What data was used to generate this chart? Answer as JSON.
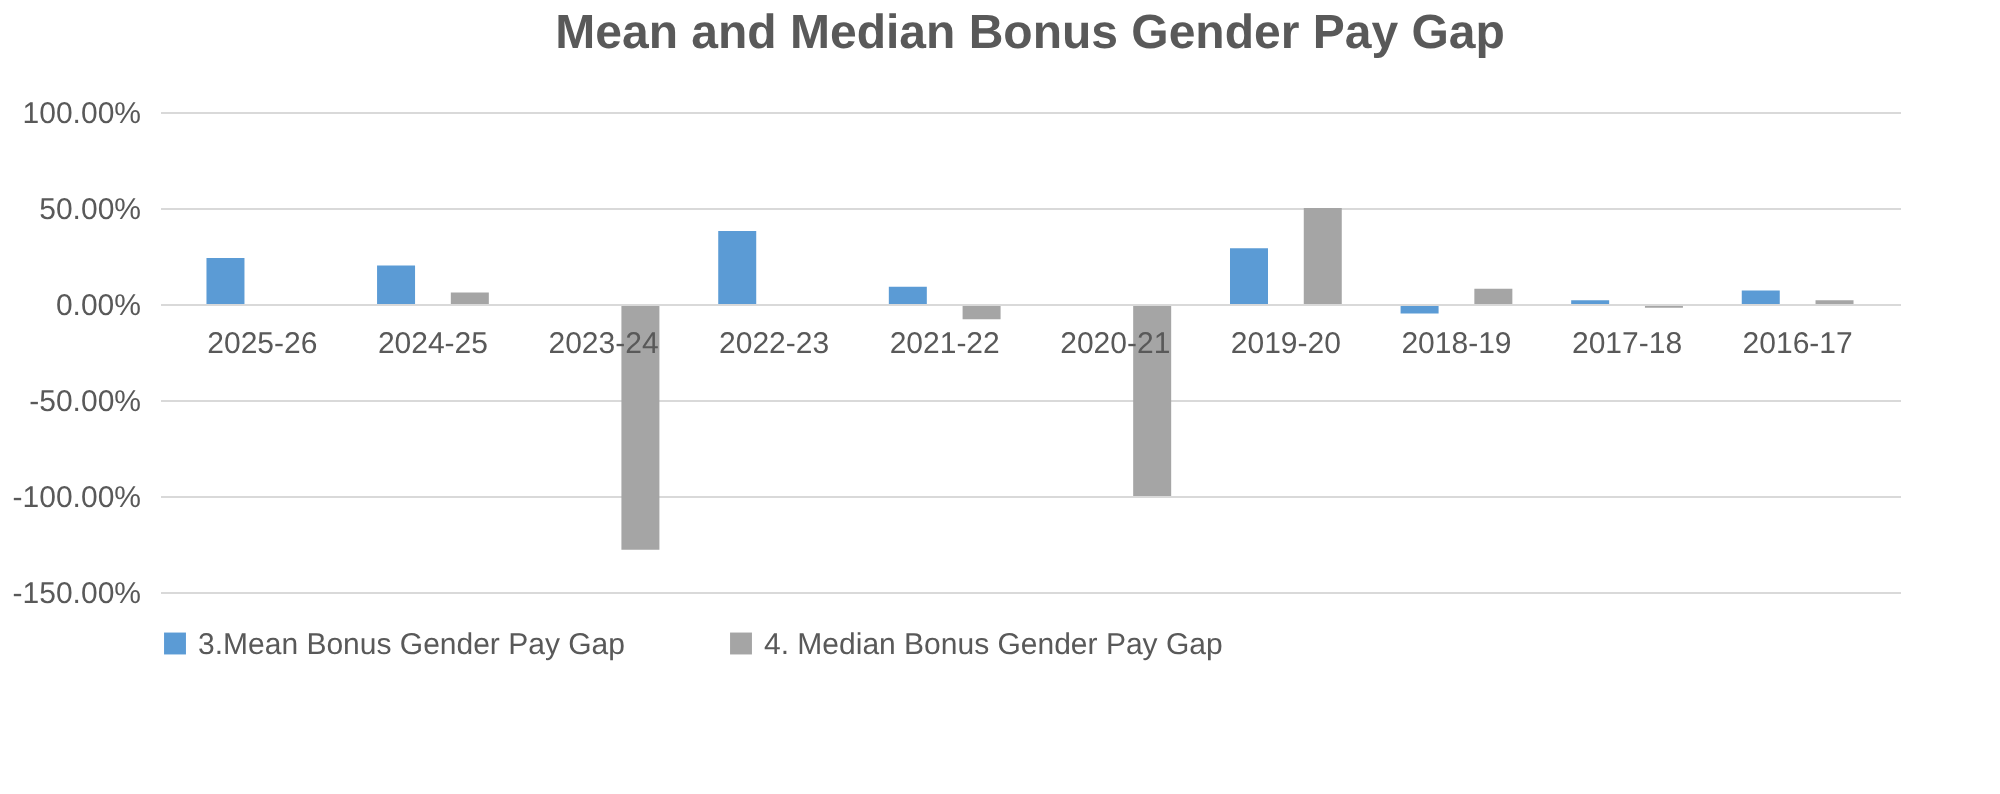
{
  "chart_data": {
    "type": "bar",
    "title": "Mean and Median Bonus Gender Pay Gap",
    "categories": [
      "2025-26",
      "2024-25",
      "2023-24",
      "2022-23",
      "2021-22",
      "2020-21",
      "2019-20",
      "2018-19",
      "2017-18",
      "2016-17"
    ],
    "series": [
      {
        "name": "3.Mean Bonus Gender Pay Gap",
        "color": "#5b9bd5",
        "values": [
          24,
          20,
          null,
          38,
          9,
          null,
          29,
          -5,
          2,
          7
        ]
      },
      {
        "name": "4. Median Bonus Gender Pay Gap",
        "color": "#a5a5a5",
        "values": [
          null,
          6,
          -128,
          null,
          -8,
          -100,
          50,
          8,
          -2,
          2
        ]
      }
    ],
    "ylim": [
      -150,
      100
    ],
    "yticks": [
      {
        "value": -150,
        "label": "-150.00%"
      },
      {
        "value": -100,
        "label": "-100.00%"
      },
      {
        "value": -50,
        "label": "-50.00%"
      },
      {
        "value": 0,
        "label": "0.00%"
      },
      {
        "value": 50,
        "label": "50.00%"
      },
      {
        "value": 100,
        "label": "100.00%"
      }
    ],
    "grid": "y",
    "legend": "bottom"
  }
}
